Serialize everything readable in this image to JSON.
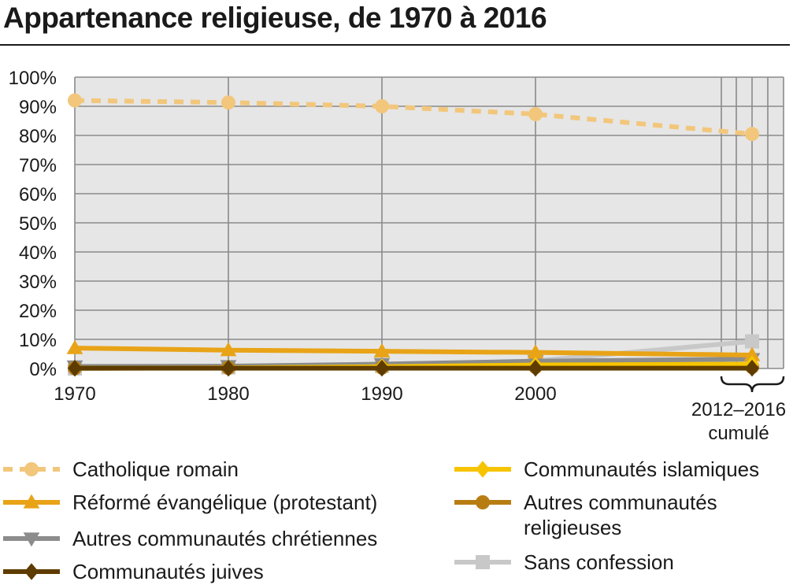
{
  "chart_data": {
    "type": "line",
    "title": "Appartenance religieuse, de 1970 à 2016",
    "x": [
      "1970",
      "1980",
      "1990",
      "2000",
      "2012–2016"
    ],
    "x_tick_labels": [
      "1970",
      "1980",
      "1990",
      "2000"
    ],
    "x_annotation": [
      "2012–2016",
      "cumulé"
    ],
    "y_tick_labels": [
      "0%",
      "10%",
      "20%",
      "30%",
      "40%",
      "50%",
      "60%",
      "70%",
      "80%",
      "90%",
      "100%"
    ],
    "ylim": [
      0,
      100
    ],
    "grid": true,
    "legend_position": "bottom",
    "series": [
      {
        "name": "Catholique romain",
        "values": [
          92.0,
          91.3,
          90.0,
          87.3,
          80.5
        ],
        "color": "#f2c77c",
        "marker": "circle",
        "dash": true
      },
      {
        "name": "Réformé évangélique (protestant)",
        "values": [
          7.0,
          6.3,
          5.9,
          5.5,
          4.6
        ],
        "color": "#e8a317",
        "marker": "triangle-up"
      },
      {
        "name": "Autres communautés chrétiennes",
        "values": [
          0.7,
          0.8,
          1.5,
          2.5,
          3.2
        ],
        "color": "#8c8c8c",
        "marker": "triangle-down"
      },
      {
        "name": "Communautés juives",
        "values": [
          0.1,
          0.1,
          0.1,
          0.1,
          0.1
        ],
        "color": "#5e3c00",
        "marker": "diamond"
      },
      {
        "name": "Communautés islamiques",
        "values": [
          0.1,
          0.2,
          0.6,
          1.2,
          1.5
        ],
        "color": "#f7c400",
        "marker": "diamond"
      },
      {
        "name": "Autres communautés religieuses",
        "values": [
          0.1,
          0.2,
          0.3,
          0.5,
          0.5
        ],
        "color": "#b87d12",
        "marker": "circle"
      },
      {
        "name": "Sans confession",
        "values": [
          0.0,
          0.4,
          0.9,
          2.6,
          9.3
        ],
        "color": "#c8c8c8",
        "marker": "square"
      }
    ],
    "legend_order": [
      0,
      4,
      1,
      5,
      2,
      6,
      3
    ],
    "legend_labels_wrapped": {
      "Autres communautés religieuses": [
        "Autres communautés",
        "religieuses"
      ]
    }
  }
}
